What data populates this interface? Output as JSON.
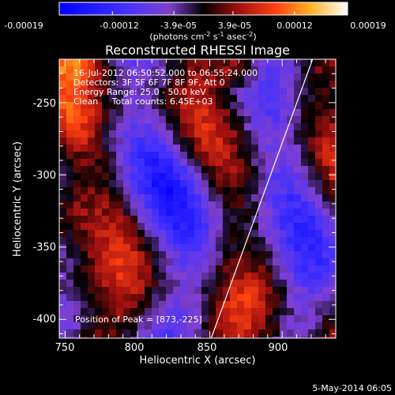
{
  "colorbar": {
    "tick_labels": [
      "-0.00019",
      "-0.00012",
      "-3.9e-05",
      "3.9e-05",
      "0.00012",
      "0.00019"
    ],
    "units_main": "(photons cm",
    "units_sup1": "-2",
    "units_mid1": " s",
    "units_sup2": "-1",
    "units_mid2": " asec",
    "units_sup3": "-2",
    "units_end": ")",
    "range": [
      -0.00019,
      0.00019
    ]
  },
  "chart_data": {
    "type": "heatmap",
    "title": "Reconstructed RHESSI Image",
    "xlabel": "Heliocentric X (arcsec)",
    "ylabel": "Heliocentric Y (arcsec)",
    "xlim": [
      746,
      937
    ],
    "ylim": [
      -413,
      -220
    ],
    "xticks": [
      750,
      800,
      850,
      900
    ],
    "yticks": [
      -250,
      -300,
      -350,
      -400
    ],
    "annotations": [
      "16-Jul-2012 06:50:52.000 to 06:55:24.000",
      "Detectors: 3F 5F 6F 7F 8F 9F, Att 0",
      "Energy Range: 25.0 - 50.0 keV",
      "Clean     Total counts: 6.45E+03"
    ],
    "peak_label": "Position of Peak = [873,-225]",
    "peak": [
      873,
      -225
    ],
    "limb_line": [
      [
        851,
        -413
      ],
      [
        921,
        -220
      ]
    ],
    "colors": {
      "low": "#1010ff",
      "mid_low": "#8040d0",
      "zero": "#000000",
      "mid_high": "#e03020",
      "high": "#ffffe0"
    }
  },
  "footer": {
    "date": "5-May-2014 06:05"
  }
}
